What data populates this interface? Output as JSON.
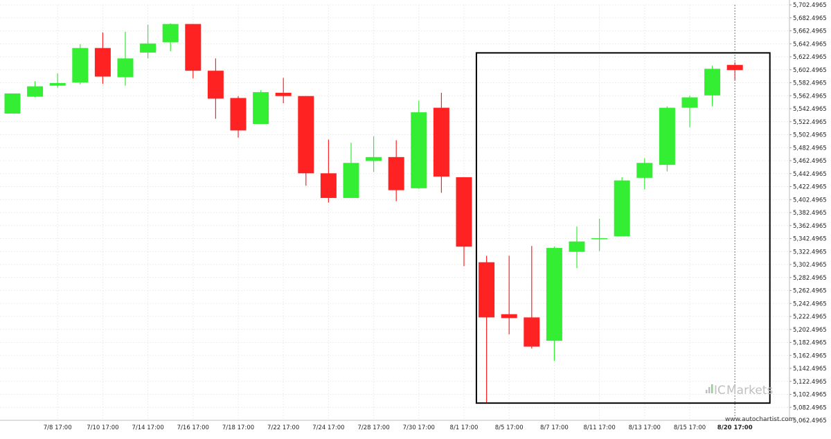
{
  "chart_data": {
    "type": "candlestick",
    "timeframe": "1 day",
    "y_axis": {
      "ticks": [
        "5,062.4965",
        "5,082.4965",
        "5,102.4965",
        "5,122.4965",
        "5,142.4965",
        "5,162.4965",
        "5,182.4965",
        "5,202.4965",
        "5,222.4965",
        "5,242.4965",
        "5,262.4965",
        "5,282.4965",
        "5,302.4965",
        "5,322.4965",
        "5,342.4965",
        "5,362.4965",
        "5,382.4965",
        "5,402.4965",
        "5,422.4965",
        "5,442.4965",
        "5,462.4965",
        "5,482.4965",
        "5,502.4965",
        "5,522.4965",
        "5,542.4965",
        "5,562.4965",
        "5,582.4965",
        "5,602.4965",
        "5,622.4965",
        "5,642.4965",
        "5,662.4965",
        "5,682.4965",
        "5,702.4965"
      ],
      "range": [
        5062.4965,
        5702.4965
      ]
    },
    "x_axis": {
      "labels": [
        {
          "i": 2,
          "text": "7/8 17:00"
        },
        {
          "i": 4,
          "text": "7/10 17:00"
        },
        {
          "i": 6,
          "text": "7/14 17:00"
        },
        {
          "i": 8,
          "text": "7/16 17:00"
        },
        {
          "i": 10,
          "text": "7/18 17:00"
        },
        {
          "i": 12,
          "text": "7/22 17:00"
        },
        {
          "i": 14,
          "text": "7/24 17:00"
        },
        {
          "i": 16,
          "text": "7/28 17:00"
        },
        {
          "i": 18,
          "text": "7/30 17:00"
        },
        {
          "i": 20,
          "text": "8/1 17:00"
        },
        {
          "i": 22,
          "text": "8/5 17:00"
        },
        {
          "i": 24,
          "text": "8/7 17:00"
        },
        {
          "i": 26,
          "text": "8/11 17:00"
        },
        {
          "i": 28,
          "text": "8/13 17:00"
        },
        {
          "i": 30,
          "text": "8/15 17:00"
        },
        {
          "i": 32,
          "text": "8/20 17:00",
          "bold": true
        }
      ]
    },
    "candles": [
      {
        "o": 5535,
        "h": 5566,
        "l": 5535,
        "c": 5566
      },
      {
        "o": 5561,
        "h": 5585,
        "l": 5560,
        "c": 5577
      },
      {
        "o": 5578,
        "h": 5597,
        "l": 5575,
        "c": 5582
      },
      {
        "o": 5583,
        "h": 5642,
        "l": 5580,
        "c": 5636
      },
      {
        "o": 5636,
        "h": 5660,
        "l": 5581,
        "c": 5592
      },
      {
        "o": 5591,
        "h": 5661,
        "l": 5578,
        "c": 5620
      },
      {
        "o": 5629,
        "h": 5672,
        "l": 5620,
        "c": 5643
      },
      {
        "o": 5645,
        "h": 5674,
        "l": 5631,
        "c": 5673
      },
      {
        "o": 5673,
        "h": 5673,
        "l": 5589,
        "c": 5601
      },
      {
        "o": 5601,
        "h": 5620,
        "l": 5527,
        "c": 5558
      },
      {
        "o": 5559,
        "h": 5562,
        "l": 5498,
        "c": 5509
      },
      {
        "o": 5519,
        "h": 5571,
        "l": 5519,
        "c": 5568
      },
      {
        "o": 5567,
        "h": 5590,
        "l": 5551,
        "c": 5562
      },
      {
        "o": 5562,
        "h": 5562,
        "l": 5424,
        "c": 5443
      },
      {
        "o": 5443,
        "h": 5495,
        "l": 5398,
        "c": 5405
      },
      {
        "o": 5405,
        "h": 5490,
        "l": 5405,
        "c": 5459
      },
      {
        "o": 5462,
        "h": 5500,
        "l": 5445,
        "c": 5468
      },
      {
        "o": 5468,
        "h": 5494,
        "l": 5400,
        "c": 5417
      },
      {
        "o": 5420,
        "h": 5555,
        "l": 5419,
        "c": 5537
      },
      {
        "o": 5544,
        "h": 5567,
        "l": 5413,
        "c": 5438
      },
      {
        "o": 5437,
        "h": 5437,
        "l": 5300,
        "c": 5330
      },
      {
        "o": 5306,
        "h": 5316,
        "l": 5090,
        "c": 5221
      },
      {
        "o": 5226,
        "h": 5316,
        "l": 5195,
        "c": 5220
      },
      {
        "o": 5221,
        "h": 5331,
        "l": 5173,
        "c": 5176
      },
      {
        "o": 5185,
        "h": 5330,
        "l": 5154,
        "c": 5328
      },
      {
        "o": 5322,
        "h": 5361,
        "l": 5297,
        "c": 5338
      },
      {
        "o": 5343,
        "h": 5373,
        "l": 5323,
        "c": 5343
      },
      {
        "o": 5346,
        "h": 5437,
        "l": 5346,
        "c": 5432
      },
      {
        "o": 5436,
        "h": 5466,
        "l": 5418,
        "c": 5459
      },
      {
        "o": 5456,
        "h": 5546,
        "l": 5446,
        "c": 5544
      },
      {
        "o": 5544,
        "h": 5563,
        "l": 5514,
        "c": 5560
      },
      {
        "o": 5563,
        "h": 5609,
        "l": 5546,
        "c": 5604
      },
      {
        "o": 5610,
        "h": 5614,
        "l": 5587,
        "c": 5602
      }
    ],
    "highlight_box": {
      "from_index": 20.55,
      "to_index": 33.55,
      "top": 5628.5,
      "bottom": 5089
    },
    "up_color": "#33ee33",
    "down_color": "#ff2222",
    "box_color": "#000000",
    "grid": true,
    "legend": "none"
  },
  "watermark": {
    "text": "www.autochartist.com"
  },
  "brand": {
    "ic": "IC",
    "markets": "Markets"
  }
}
